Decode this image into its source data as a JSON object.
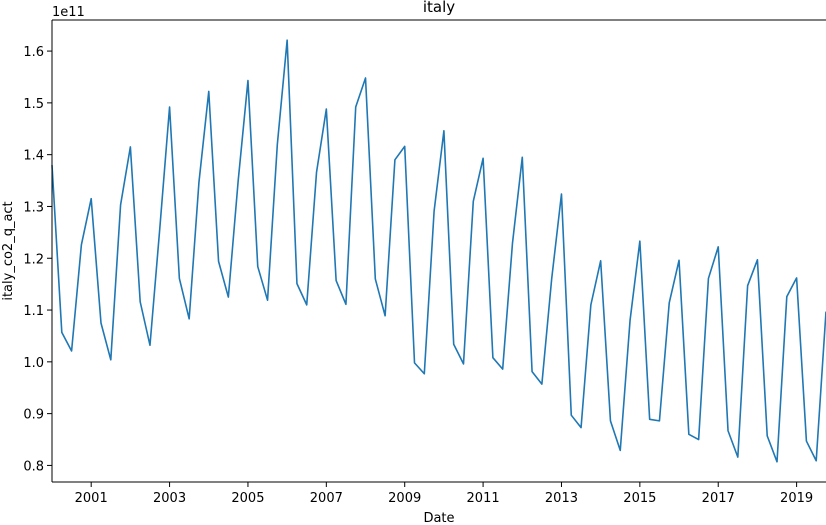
{
  "chart_data": {
    "type": "line",
    "title": "italy",
    "xlabel": "Date",
    "ylabel": "italy_co2_q_act",
    "y_offset_label": "1e11",
    "y_multiplier": 100000000000.0,
    "xlim": [
      2000.0,
      2019.75
    ],
    "ylim": [
      0.768,
      1.66
    ],
    "grid": false,
    "legend": "none",
    "line_color": "#1f77b4",
    "x_ticks": [
      2001,
      2003,
      2005,
      2007,
      2009,
      2011,
      2013,
      2015,
      2017,
      2019
    ],
    "x_tick_labels": [
      "2001",
      "2003",
      "2005",
      "2007",
      "2009",
      "2011",
      "2013",
      "2015",
      "2017",
      "2019"
    ],
    "y_ticks": [
      0.8,
      0.9,
      1.0,
      1.1,
      1.2,
      1.3,
      1.4,
      1.5,
      1.6
    ],
    "y_tick_labels": [
      "0.8",
      "0.9",
      "1.0",
      "1.1",
      "1.2",
      "1.3",
      "1.4",
      "1.5",
      "1.6"
    ],
    "series": [
      {
        "x": [
          2000.0,
          2000.25,
          2000.5,
          2000.75,
          2001.0,
          2001.25,
          2001.5,
          2001.75,
          2002.0,
          2002.25,
          2002.5,
          2002.75,
          2003.0,
          2003.25,
          2003.5,
          2003.75,
          2004.0,
          2004.25,
          2004.5,
          2004.75,
          2005.0,
          2005.25,
          2005.5,
          2005.75,
          2006.0,
          2006.25,
          2006.5,
          2006.75,
          2007.0,
          2007.25,
          2007.5,
          2007.75,
          2008.0,
          2008.25,
          2008.5,
          2008.75,
          2009.0,
          2009.25,
          2009.5,
          2009.75,
          2010.0,
          2010.25,
          2010.5,
          2010.75,
          2011.0,
          2011.25,
          2011.5,
          2011.75,
          2012.0,
          2012.25,
          2012.5,
          2012.75,
          2013.0,
          2013.25,
          2013.5,
          2013.75,
          2014.0,
          2014.25,
          2014.5,
          2014.75,
          2015.0,
          2015.25,
          2015.5,
          2015.75,
          2016.0,
          2016.25,
          2016.5,
          2016.75,
          2017.0,
          2017.25,
          2017.5,
          2017.75,
          2018.0,
          2018.25,
          2018.5,
          2018.75,
          2019.0,
          2019.25,
          2019.5,
          2019.75
        ],
        "values": [
          1.38,
          1.057,
          1.021,
          1.226,
          1.315,
          1.075,
          1.004,
          1.303,
          1.415,
          1.116,
          1.032,
          1.257,
          1.492,
          1.161,
          1.083,
          1.347,
          1.522,
          1.194,
          1.125,
          1.349,
          1.543,
          1.184,
          1.119,
          1.42,
          1.621,
          1.151,
          1.11,
          1.366,
          1.488,
          1.157,
          1.111,
          1.492,
          1.548,
          1.16,
          1.089,
          1.39,
          1.416,
          0.998,
          0.977,
          1.291,
          1.446,
          1.034,
          0.996,
          1.31,
          1.393,
          1.008,
          0.986,
          1.229,
          1.395,
          0.981,
          0.957,
          1.16,
          1.324,
          0.897,
          0.873,
          1.11,
          1.195,
          0.886,
          0.829,
          1.08,
          1.233,
          0.889,
          0.886,
          1.114,
          1.196,
          0.86,
          0.85,
          1.161,
          1.222,
          0.867,
          0.816,
          1.147,
          1.197,
          0.857,
          0.807,
          1.126,
          1.162,
          0.847,
          0.809,
          1.097
        ]
      }
    ]
  }
}
